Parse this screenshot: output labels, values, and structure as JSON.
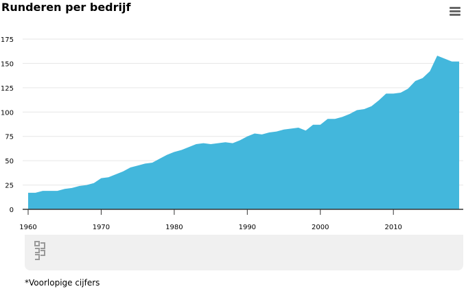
{
  "header": {
    "title": "Runderen per bedrijf"
  },
  "menu": {
    "icon": "hamburger-menu-icon"
  },
  "logo": {
    "icon": "cbs-logo-icon",
    "color": "#999999"
  },
  "footnote": "*Voorlopige cijfers",
  "colors": {
    "area": "#43b7dc",
    "grid": "#e6e6e6",
    "axis": "#333333"
  },
  "chart_data": {
    "type": "area",
    "title": "Runderen per bedrijf",
    "xlabel": "",
    "ylabel": "",
    "xlim": [
      1960,
      2019
    ],
    "ylim": [
      0,
      175
    ],
    "yticks": [
      0,
      25,
      50,
      75,
      100,
      125,
      150,
      175
    ],
    "xticks": [
      1960,
      1970,
      1980,
      1990,
      2000,
      2010
    ],
    "grid": true,
    "legend": "none",
    "series": [
      {
        "x": [
          1960,
          1961,
          1962,
          1963,
          1964,
          1965,
          1966,
          1967,
          1968,
          1969,
          1970,
          1971,
          1972,
          1973,
          1974,
          1975,
          1976,
          1977,
          1978,
          1979,
          1980,
          1981,
          1982,
          1983,
          1984,
          1985,
          1986,
          1987,
          1988,
          1989,
          1990,
          1991,
          1992,
          1993,
          1994,
          1995,
          1996,
          1997,
          1998,
          1999,
          2000,
          2001,
          2002,
          2003,
          2004,
          2005,
          2006,
          2007,
          2008,
          2009,
          2010,
          2011,
          2012,
          2013,
          2014,
          2015,
          2016,
          2017,
          2018,
          2019
        ],
        "values": [
          17,
          17,
          19,
          19,
          19,
          21,
          22,
          24,
          25,
          27,
          32,
          33,
          36,
          39,
          43,
          45,
          47,
          48,
          52,
          56,
          59,
          61,
          64,
          67,
          68,
          67,
          68,
          69,
          68,
          71,
          75,
          78,
          77,
          79,
          80,
          82,
          83,
          84,
          81,
          87,
          87,
          93,
          93,
          95,
          98,
          102,
          103,
          106,
          112,
          119,
          119,
          120,
          124,
          132,
          135,
          142,
          158,
          155,
          152,
          152
        ]
      }
    ]
  }
}
